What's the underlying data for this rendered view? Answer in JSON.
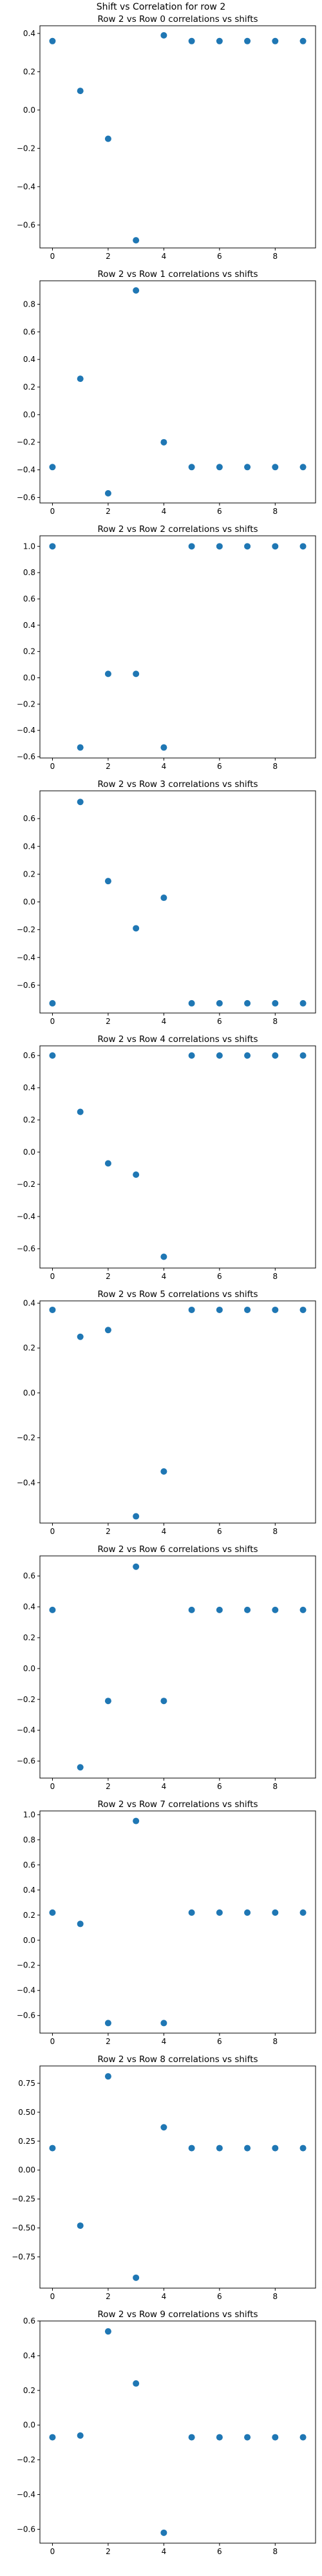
{
  "figure": {
    "suptitle": "Shift vs Correlation for row 2"
  },
  "colors": {
    "marker": "#1f77b4",
    "axis": "#000000",
    "background": "#ffffff"
  },
  "chart_data": [
    {
      "type": "scatter",
      "title": "Row 2 vs Row 0 correlations vs shifts",
      "xlabel": "",
      "ylabel": "",
      "x": [
        0,
        1,
        2,
        3,
        4,
        5,
        6,
        7,
        8,
        9
      ],
      "y": [
        0.36,
        0.1,
        -0.15,
        -0.68,
        0.39,
        0.36,
        0.36,
        0.36,
        0.36,
        0.36
      ],
      "xlim": [
        -0.45,
        9.45
      ],
      "ylim": [
        -0.72,
        0.44
      ],
      "xticks": [
        0,
        2,
        4,
        6,
        8
      ],
      "yticks": [
        -0.6,
        -0.4,
        -0.2,
        0.0,
        0.2,
        0.4
      ],
      "ytick_labels": [
        "−0.6",
        "−0.4",
        "−0.2",
        "0.0",
        "0.2",
        "0.4"
      ],
      "grid": false
    },
    {
      "type": "scatter",
      "title": "Row 2 vs Row 1 correlations vs shifts",
      "xlabel": "",
      "ylabel": "",
      "x": [
        0,
        1,
        2,
        3,
        4,
        5,
        6,
        7,
        8,
        9
      ],
      "y": [
        -0.38,
        0.26,
        -0.57,
        0.9,
        -0.2,
        -0.38,
        -0.38,
        -0.38,
        -0.38,
        -0.38
      ],
      "xlim": [
        -0.45,
        9.45
      ],
      "ylim": [
        -0.64,
        0.97
      ],
      "xticks": [
        0,
        2,
        4,
        6,
        8
      ],
      "yticks": [
        -0.6,
        -0.4,
        -0.2,
        0.0,
        0.2,
        0.4,
        0.6,
        0.8
      ],
      "ytick_labels": [
        "−0.6",
        "−0.4",
        "−0.2",
        "0.0",
        "0.2",
        "0.4",
        "0.6",
        "0.8"
      ],
      "grid": false
    },
    {
      "type": "scatter",
      "title": "Row 2 vs Row 2 correlations vs shifts",
      "xlabel": "",
      "ylabel": "",
      "x": [
        0,
        1,
        2,
        3,
        4,
        5,
        6,
        7,
        8,
        9
      ],
      "y": [
        1.0,
        -0.53,
        0.03,
        0.03,
        -0.53,
        1.0,
        1.0,
        1.0,
        1.0,
        1.0
      ],
      "xlim": [
        -0.45,
        9.45
      ],
      "ylim": [
        -0.61,
        1.08
      ],
      "xticks": [
        0,
        2,
        4,
        6,
        8
      ],
      "yticks": [
        -0.6,
        -0.4,
        -0.2,
        0.0,
        0.2,
        0.4,
        0.6,
        0.8,
        1.0
      ],
      "ytick_labels": [
        "−0.6",
        "−0.4",
        "−0.2",
        "0.0",
        "0.2",
        "0.4",
        "0.6",
        "0.8",
        "1.0"
      ],
      "grid": false
    },
    {
      "type": "scatter",
      "title": "Row 2 vs Row 3 correlations vs shifts",
      "xlabel": "",
      "ylabel": "",
      "x": [
        0,
        1,
        2,
        3,
        4,
        5,
        6,
        7,
        8,
        9
      ],
      "y": [
        -0.73,
        0.72,
        0.15,
        -0.19,
        0.03,
        -0.73,
        -0.73,
        -0.73,
        -0.73,
        -0.73
      ],
      "xlim": [
        -0.45,
        9.45
      ],
      "ylim": [
        -0.8,
        0.8
      ],
      "xticks": [
        0,
        2,
        4,
        6,
        8
      ],
      "yticks": [
        -0.6,
        -0.4,
        -0.2,
        0.0,
        0.2,
        0.4,
        0.6
      ],
      "ytick_labels": [
        "−0.6",
        "−0.4",
        "−0.2",
        "0.0",
        "0.2",
        "0.4",
        "0.6"
      ],
      "grid": false
    },
    {
      "type": "scatter",
      "title": "Row 2 vs Row 4 correlations vs shifts",
      "xlabel": "",
      "ylabel": "",
      "x": [
        0,
        1,
        2,
        3,
        4,
        5,
        6,
        7,
        8,
        9
      ],
      "y": [
        0.6,
        0.25,
        -0.07,
        -0.14,
        -0.65,
        0.6,
        0.6,
        0.6,
        0.6,
        0.6
      ],
      "xlim": [
        -0.45,
        9.45
      ],
      "ylim": [
        -0.72,
        0.66
      ],
      "xticks": [
        0,
        2,
        4,
        6,
        8
      ],
      "yticks": [
        -0.6,
        -0.4,
        -0.2,
        0.0,
        0.2,
        0.4,
        0.6
      ],
      "ytick_labels": [
        "−0.6",
        "−0.4",
        "−0.2",
        "0.0",
        "0.2",
        "0.4",
        "0.6"
      ],
      "grid": false
    },
    {
      "type": "scatter",
      "title": "Row 2 vs Row 5 correlations vs shifts",
      "xlabel": "",
      "ylabel": "",
      "x": [
        0,
        1,
        2,
        3,
        4,
        5,
        6,
        7,
        8,
        9
      ],
      "y": [
        0.37,
        0.25,
        0.28,
        -0.55,
        -0.35,
        0.37,
        0.37,
        0.37,
        0.37,
        0.37
      ],
      "xlim": [
        -0.45,
        9.45
      ],
      "ylim": [
        -0.58,
        0.41
      ],
      "xticks": [
        0,
        2,
        4,
        6,
        8
      ],
      "yticks": [
        -0.4,
        -0.2,
        0.0,
        0.2,
        0.4
      ],
      "ytick_labels": [
        "−0.4",
        "−0.2",
        "0.0",
        "0.2",
        "0.4"
      ],
      "grid": false
    },
    {
      "type": "scatter",
      "title": "Row 2 vs Row 6 correlations vs shifts",
      "xlabel": "",
      "ylabel": "",
      "x": [
        0,
        1,
        2,
        3,
        4,
        5,
        6,
        7,
        8,
        9
      ],
      "y": [
        0.38,
        -0.64,
        -0.21,
        0.66,
        -0.21,
        0.38,
        0.38,
        0.38,
        0.38,
        0.38
      ],
      "xlim": [
        -0.45,
        9.45
      ],
      "ylim": [
        -0.71,
        0.73
      ],
      "xticks": [
        0,
        2,
        4,
        6,
        8
      ],
      "yticks": [
        -0.6,
        -0.4,
        -0.2,
        0.0,
        0.2,
        0.4,
        0.6
      ],
      "ytick_labels": [
        "−0.6",
        "−0.4",
        "−0.2",
        "0.0",
        "0.2",
        "0.4",
        "0.6"
      ],
      "grid": false
    },
    {
      "type": "scatter",
      "title": "Row 2 vs Row 7 correlations vs shifts",
      "xlabel": "",
      "ylabel": "",
      "x": [
        0,
        1,
        2,
        3,
        4,
        5,
        6,
        7,
        8,
        9
      ],
      "y": [
        0.22,
        0.13,
        -0.66,
        0.95,
        -0.66,
        0.22,
        0.22,
        0.22,
        0.22,
        0.22
      ],
      "xlim": [
        -0.45,
        9.45
      ],
      "ylim": [
        -0.74,
        1.03
      ],
      "xticks": [
        0,
        2,
        4,
        6,
        8
      ],
      "yticks": [
        -0.6,
        -0.4,
        -0.2,
        0.0,
        0.2,
        0.4,
        0.6,
        0.8,
        1.0
      ],
      "ytick_labels": [
        "−0.6",
        "−0.4",
        "−0.2",
        "0.0",
        "0.2",
        "0.4",
        "0.6",
        "0.8",
        "1.0"
      ],
      "grid": false
    },
    {
      "type": "scatter",
      "title": "Row 2 vs Row 8 correlations vs shifts",
      "xlabel": "",
      "ylabel": "",
      "x": [
        0,
        1,
        2,
        3,
        4,
        5,
        6,
        7,
        8,
        9
      ],
      "y": [
        0.19,
        -0.48,
        0.81,
        -0.93,
        0.37,
        0.19,
        0.19,
        0.19,
        0.19,
        0.19
      ],
      "xlim": [
        -0.45,
        9.45
      ],
      "ylim": [
        -1.02,
        0.9
      ],
      "xticks": [
        0,
        2,
        4,
        6,
        8
      ],
      "yticks": [
        -0.75,
        -0.5,
        -0.25,
        0.0,
        0.25,
        0.5,
        0.75
      ],
      "ytick_labels": [
        "−0.75",
        "−0.50",
        "−0.25",
        "0.00",
        "0.25",
        "0.50",
        "0.75"
      ],
      "grid": false
    },
    {
      "type": "scatter",
      "title": "Row 2 vs Row 9 correlations vs shifts",
      "xlabel": "",
      "ylabel": "",
      "x": [
        0,
        1,
        2,
        3,
        4,
        5,
        6,
        7,
        8,
        9
      ],
      "y": [
        -0.07,
        -0.06,
        0.54,
        0.24,
        -0.62,
        -0.07,
        -0.07,
        -0.07,
        -0.07,
        -0.07
      ],
      "xlim": [
        -0.45,
        9.45
      ],
      "ylim": [
        -0.68,
        0.6
      ],
      "xticks": [
        0,
        2,
        4,
        6,
        8
      ],
      "yticks": [
        -0.6,
        -0.4,
        -0.2,
        0.0,
        0.2,
        0.4,
        0.6
      ],
      "ytick_labels": [
        "−0.6",
        "−0.4",
        "−0.2",
        "0.0",
        "0.2",
        "0.4",
        "0.6"
      ],
      "grid": false
    }
  ]
}
